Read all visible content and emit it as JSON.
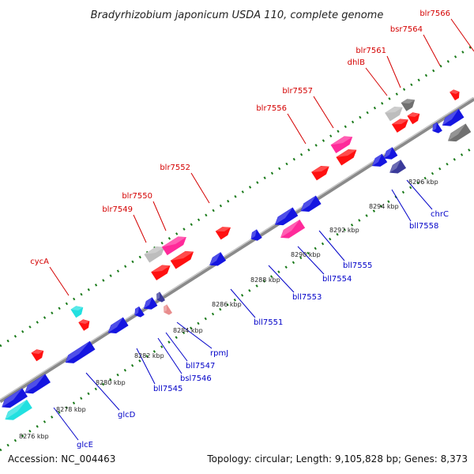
{
  "title": "Bradyrhizobium japonicum USDA 110, complete genome",
  "footer": {
    "accession": "Accession: NC_004463",
    "summary": "Topology: circular; Length: 9,105,828 bp; Genes: 8,373"
  },
  "colors": {
    "forward_label": "#d40000",
    "reverse_label": "#0000c8",
    "backbone": "#8a8a8a",
    "ruler_ticks": "#1a7a1a",
    "gene_red": "#ff1010",
    "gene_magenta": "#ff2a9a",
    "gene_gray": "#bdbdbd",
    "gene_dark_gray": "#707070",
    "gene_blue": "#1515e0",
    "gene_navy": "#3a3a9a",
    "gene_cyan": "#22e0e0",
    "gene_pink": "#e88c8c"
  },
  "ticks": [
    "8276 kbp",
    "8278 kbp",
    "8280 kbp",
    "8282 kbp",
    "8284 kbp",
    "8286 kbp",
    "8288 kbp",
    "8290 kbp",
    "8292 kbp",
    "8294 kbp",
    "8296 kbp"
  ],
  "forward_genes": [
    "cycA",
    "blr7549",
    "blr7550",
    "blr7552",
    "blr7556",
    "blr7557",
    "dhlB",
    "blr7561",
    "bsr7564",
    "blr7566"
  ],
  "reverse_genes": [
    "glcE",
    "glcD",
    "bll7545",
    "bsl7546",
    "bll7547",
    "rpmJ",
    "bll7551",
    "bll7553",
    "bll7554",
    "bll7555",
    "bll7558",
    "chrC"
  ]
}
